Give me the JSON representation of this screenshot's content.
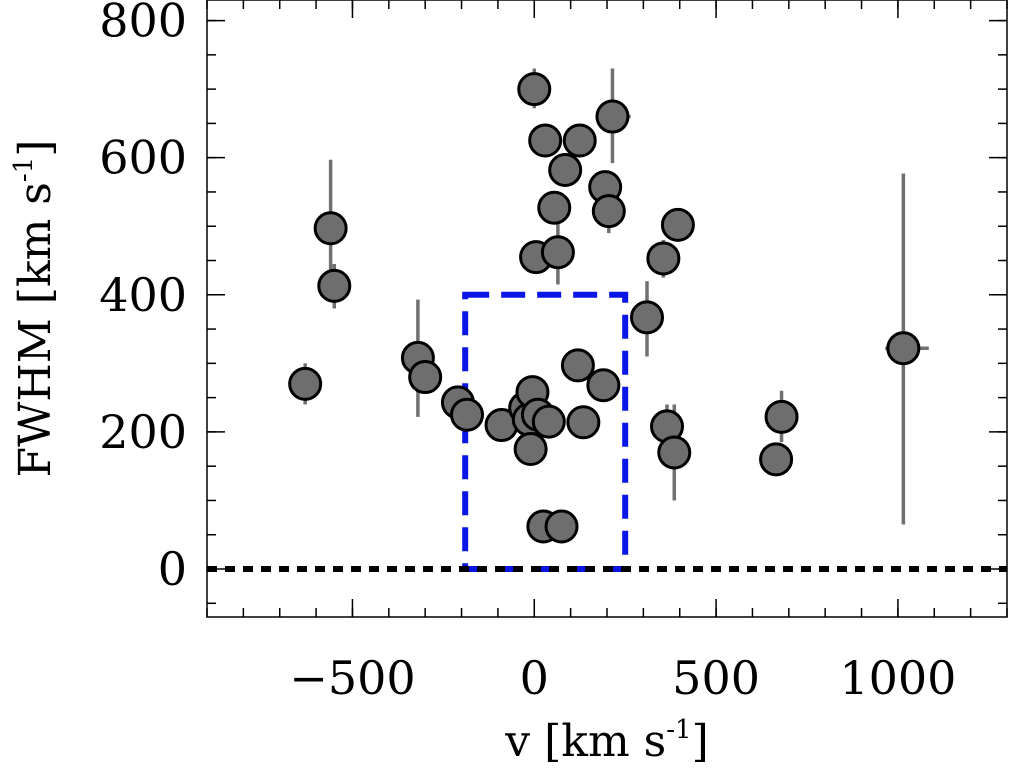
{
  "chart_data": {
    "type": "scatter",
    "xlabel": {
      "text": "v [km s",
      "sup": "-1",
      "suffix": "]"
    },
    "ylabel": {
      "text": "FWHM [km s",
      "sup": "-1",
      "suffix": "]"
    },
    "xlim": [
      -900,
      1300
    ],
    "ylim": [
      -70,
      830
    ],
    "x_ticks": [
      {
        "value": -500,
        "label": "−500"
      },
      {
        "value": 0,
        "label": "0"
      },
      {
        "value": 500,
        "label": "500"
      },
      {
        "value": 1000,
        "label": "1000"
      }
    ],
    "y_ticks": [
      {
        "value": 0,
        "label": "0"
      },
      {
        "value": 200,
        "label": "200"
      },
      {
        "value": 400,
        "label": "400"
      },
      {
        "value": 600,
        "label": "600"
      },
      {
        "value": 800,
        "label": "800"
      }
    ],
    "x_minor_step": 100,
    "y_minor_step": 50,
    "grid": false,
    "marker_color": "#6e6e6e",
    "marker_edge": "#000000",
    "errorbar_color": "#707070",
    "box_color": "#0a16e8",
    "zero_line_color": "#000000",
    "selection_box": {
      "x0": -190,
      "x1": 250,
      "y0": 0,
      "y1": 400
    },
    "zero_line_y": 0,
    "points": [
      {
        "x": -630,
        "y": 270,
        "ylo": 240,
        "yhi": 300
      },
      {
        "x": -560,
        "y": 497,
        "ylo": 400,
        "yhi": 597
      },
      {
        "x": -550,
        "y": 413,
        "ylo": 380,
        "yhi": 445
      },
      {
        "x": -320,
        "y": 308,
        "ylo": 222,
        "yhi": 393
      },
      {
        "x": -300,
        "y": 280
      },
      {
        "x": -210,
        "y": 243
      },
      {
        "x": -185,
        "y": 225
      },
      {
        "x": -90,
        "y": 210
      },
      {
        "x": -25,
        "y": 235
      },
      {
        "x": -15,
        "y": 218
      },
      {
        "x": -10,
        "y": 175
      },
      {
        "x": -5,
        "y": 258
      },
      {
        "x": 0,
        "y": 700,
        "ylo": 672,
        "yhi": 730
      },
      {
        "x": 5,
        "y": 455
      },
      {
        "x": 10,
        "y": 225
      },
      {
        "x": 25,
        "y": 62
      },
      {
        "x": 30,
        "y": 625
      },
      {
        "x": 40,
        "y": 215
      },
      {
        "x": 55,
        "y": 527
      },
      {
        "x": 65,
        "y": 462,
        "ylo": 415,
        "yhi": 510
      },
      {
        "x": 75,
        "y": 62
      },
      {
        "x": 85,
        "y": 582
      },
      {
        "x": 120,
        "y": 297
      },
      {
        "x": 125,
        "y": 625
      },
      {
        "x": 135,
        "y": 214
      },
      {
        "x": 190,
        "y": 268
      },
      {
        "x": 195,
        "y": 557
      },
      {
        "x": 205,
        "y": 522,
        "ylo": 490,
        "yhi": 555
      },
      {
        "x": 215,
        "y": 660,
        "ylo": 592,
        "yhi": 730,
        "xlo": 170,
        "xhi": 265
      },
      {
        "x": 310,
        "y": 367,
        "ylo": 310,
        "yhi": 420
      },
      {
        "x": 355,
        "y": 453,
        "ylo": 425,
        "yhi": 480
      },
      {
        "x": 365,
        "y": 208,
        "ylo": 175,
        "yhi": 240
      },
      {
        "x": 385,
        "y": 170,
        "ylo": 100,
        "yhi": 240
      },
      {
        "x": 395,
        "y": 502
      },
      {
        "x": 665,
        "y": 160
      },
      {
        "x": 680,
        "y": 222,
        "ylo": 185,
        "yhi": 260
      },
      {
        "x": 1015,
        "y": 322,
        "ylo": 65,
        "yhi": 577,
        "xlo": 965,
        "xhi": 1085
      }
    ]
  }
}
